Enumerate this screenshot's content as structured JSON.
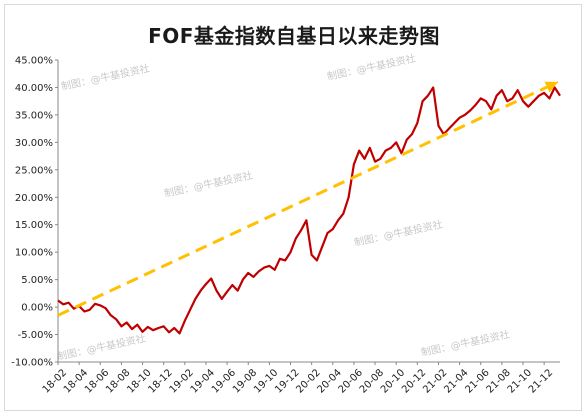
{
  "chart_data": {
    "type": "line",
    "title": "FOF基金指数自基日以来走势图",
    "ylim": [
      -10,
      45
    ],
    "ytick_labels": [
      "45.00%",
      "40.00%",
      "35.00%",
      "30.00%",
      "25.00%",
      "20.00%",
      "15.00%",
      "10.00%",
      "5.00%",
      "0.00%",
      "-5.00%",
      "-10.00%"
    ],
    "ytick_values": [
      45,
      40,
      35,
      30,
      25,
      20,
      15,
      10,
      5,
      0,
      -5,
      -10
    ],
    "x_tick_labels": [
      "18-02",
      "18-04",
      "18-06",
      "18-08",
      "18-10",
      "18-12",
      "19-02",
      "19-04",
      "19-06",
      "19-08",
      "19-10",
      "19-12",
      "20-02",
      "20-04",
      "20-06",
      "20-08",
      "20-10",
      "20-12",
      "21-02",
      "21-04",
      "21-06",
      "21-08",
      "21-10",
      "21-12"
    ],
    "series": [
      {
        "color": "#c00000",
        "x": [
          0,
          0.5,
          1,
          1.5,
          2,
          2.5,
          3,
          3.5,
          4,
          4.5,
          5,
          5.5,
          6,
          6.5,
          7,
          7.5,
          8,
          8.5,
          9,
          9.5,
          10,
          10.5,
          11,
          11.5,
          12,
          12.5,
          13,
          13.5,
          14,
          14.5,
          15,
          15.5,
          16,
          16.5,
          17,
          17.5,
          18,
          18.5,
          19,
          19.5,
          20,
          20.5,
          21,
          21.5,
          22,
          22.5,
          23,
          23.5,
          24,
          24.5,
          25,
          25.5,
          26,
          26.5,
          27,
          27.5,
          28,
          28.5,
          29,
          29.5,
          30,
          30.5,
          31,
          31.5,
          32,
          32.5,
          33,
          33.5,
          34,
          34.5,
          35,
          35.5,
          36,
          36.5,
          37,
          37.5,
          38,
          38.5,
          39,
          39.5,
          40,
          40.5,
          41,
          41.5,
          42,
          42.5,
          43,
          43.5,
          44,
          44.5,
          45,
          45.5,
          46,
          46.5,
          47,
          47.5
        ],
        "values": [
          1.2,
          0.5,
          0.8,
          -0.3,
          0.2,
          -0.8,
          -0.5,
          0.6,
          0.3,
          -0.2,
          -1.5,
          -2.2,
          -3.5,
          -2.8,
          -4.0,
          -3.2,
          -4.5,
          -3.6,
          -4.2,
          -3.8,
          -3.5,
          -4.6,
          -3.8,
          -4.8,
          -2.5,
          -0.5,
          1.5,
          3.0,
          4.2,
          5.2,
          3.0,
          1.5,
          2.8,
          4.0,
          3.0,
          5.0,
          6.2,
          5.5,
          6.5,
          7.2,
          7.5,
          6.8,
          8.8,
          8.5,
          10.0,
          12.5,
          14.0,
          15.8,
          9.5,
          8.5,
          11.0,
          13.5,
          14.2,
          15.8,
          17.0,
          20.0,
          26.0,
          28.5,
          27.0,
          29.0,
          26.5,
          27.0,
          28.5,
          29.0,
          30.0,
          28.0,
          30.5,
          31.5,
          33.5,
          37.5,
          38.5,
          40.0,
          33.0,
          31.5,
          32.5,
          33.5,
          34.5,
          35.0,
          35.8,
          36.8,
          38.0,
          37.5,
          36.0,
          38.5,
          39.5,
          37.5,
          38.0,
          39.5,
          37.5,
          36.5,
          37.5,
          38.5,
          39.0,
          38.0,
          40.0,
          38.5
        ]
      },
      {
        "color": "#ffc000",
        "style": "dashed",
        "x": [
          0,
          47.3
        ],
        "values": [
          -1.5,
          41.0
        ]
      }
    ],
    "watermark": "制图：@牛基投资社",
    "grid": false
  }
}
